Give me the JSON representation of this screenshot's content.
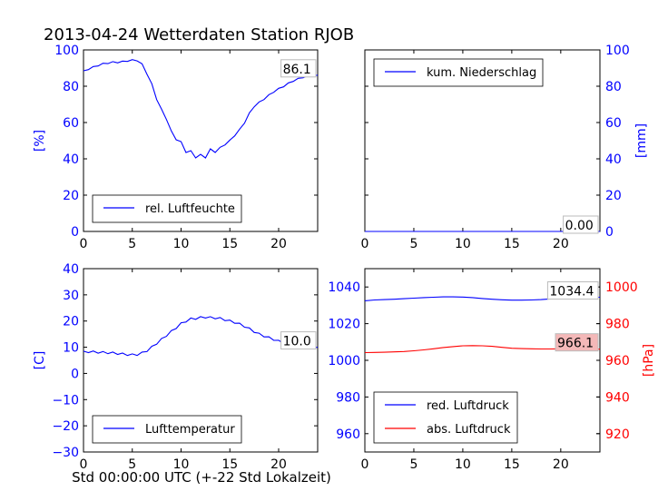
{
  "figure": {
    "title": "2013-04-24 Wetterdaten Station RJOB",
    "xlabel": "Std 00:00:00 UTC (+-22 Std Lokalzeit)"
  },
  "colors": {
    "blue": "#0000ff",
    "red": "#ff0000",
    "black": "#000000",
    "label_box": "#ffffff",
    "label_box_red": "#f4b8b8"
  },
  "chart_data": [
    {
      "id": "humidity",
      "type": "line",
      "xlim": [
        0,
        24
      ],
      "ylim": [
        0,
        100
      ],
      "xticks": [
        "0",
        "5",
        "10",
        "15",
        "20"
      ],
      "yticks": [
        "0",
        "20",
        "40",
        "60",
        "80",
        "100"
      ],
      "ylabel": "[%]",
      "legend": "lower-left",
      "last_value_label": "86.1",
      "series": [
        {
          "name": "rel. Luftfeuchte",
          "color": "#0000ff",
          "x": [
            0,
            0.5,
            1,
            1.5,
            2,
            2.5,
            3,
            3.5,
            4,
            4.5,
            5,
            5.5,
            6,
            6.5,
            7,
            7.5,
            8,
            8.5,
            9,
            9.5,
            10,
            10.5,
            11,
            11.5,
            12,
            12.5,
            13,
            13.5,
            14,
            14.5,
            15,
            15.5,
            16,
            16.5,
            17,
            17.5,
            18,
            18.5,
            19,
            19.5,
            20,
            20.5,
            21,
            21.5,
            22,
            22.5,
            23,
            23.5,
            24
          ],
          "y": [
            88.5,
            89.5,
            90.5,
            91.5,
            92.3,
            92.8,
            93.2,
            93.2,
            93.5,
            94,
            94.3,
            94.3,
            92,
            87,
            81,
            73,
            67,
            62,
            55,
            52,
            48,
            45,
            43,
            42,
            41,
            42,
            44,
            45,
            46,
            48,
            50,
            53,
            56,
            60,
            65,
            69,
            71,
            73,
            75,
            77,
            78.5,
            80,
            81.5,
            83,
            84,
            85,
            85.5,
            86,
            86.1
          ]
        }
      ]
    },
    {
      "id": "precipitation",
      "type": "line",
      "xlim": [
        0,
        24
      ],
      "ylim": [
        0,
        100
      ],
      "xticks": [
        "0",
        "5",
        "10",
        "15",
        "20"
      ],
      "yticks": [
        "0",
        "20",
        "40",
        "60",
        "80",
        "100"
      ],
      "ylabel": "[mm]",
      "legend": "top-left",
      "last_value_label": "0.00",
      "series": [
        {
          "name": "kum. Niederschlag",
          "color": "#0000ff",
          "x": [
            0,
            24
          ],
          "y": [
            0,
            0
          ]
        }
      ]
    },
    {
      "id": "temperature",
      "type": "line",
      "xlim": [
        0,
        24
      ],
      "ylim": [
        -30,
        40
      ],
      "xticks": [
        "0",
        "5",
        "10",
        "15",
        "20"
      ],
      "yticks": [
        "−30",
        "−20",
        "−10",
        "0",
        "10",
        "20",
        "30",
        "40"
      ],
      "ylabel": "[C]",
      "legend": "lower-left",
      "last_value_label": "10.0",
      "series": [
        {
          "name": "Lufttemperatur",
          "color": "#0000ff",
          "x": [
            0,
            0.5,
            1,
            1.5,
            2,
            2.5,
            3,
            3.5,
            4,
            4.5,
            5,
            5.5,
            6,
            6.5,
            7,
            7.5,
            8,
            8.5,
            9,
            9.5,
            10,
            10.5,
            11,
            11.5,
            12,
            12.5,
            13,
            13.5,
            14,
            14.5,
            15,
            15.5,
            16,
            16.5,
            17,
            17.5,
            18,
            18.5,
            19,
            19.5,
            20,
            20.5,
            21,
            21.5,
            22,
            22.5,
            23,
            23.5,
            24
          ],
          "y": [
            8.5,
            8.3,
            8.2,
            8.1,
            8.0,
            7.9,
            7.8,
            7.6,
            7.4,
            7.2,
            7.1,
            7.2,
            7.8,
            8.7,
            10,
            11.5,
            13,
            14.5,
            16,
            17.5,
            19,
            20,
            20.8,
            21,
            21.3,
            21.5,
            21.3,
            21.2,
            21,
            20.5,
            20,
            19.5,
            18.8,
            18,
            17,
            16,
            15,
            14.3,
            13.6,
            13,
            12.3,
            11.8,
            11.4,
            11,
            10.8,
            10.6,
            10.3,
            10.1,
            10.0
          ]
        }
      ]
    },
    {
      "id": "pressure",
      "type": "line",
      "xlim": [
        0,
        24
      ],
      "ylim": [
        950,
        1050
      ],
      "ylim_right": [
        910,
        1010
      ],
      "xticks": [
        "0",
        "5",
        "10",
        "15",
        "20"
      ],
      "yticks": [
        "960",
        "980",
        "1000",
        "1020",
        "1040"
      ],
      "yticks_right": [
        "920",
        "940",
        "960",
        "980",
        "1000"
      ],
      "ylabel_right": "[hPa]",
      "legend": "lower-left",
      "last_value_labels": [
        "1034.4",
        "966.1"
      ],
      "series": [
        {
          "name": "red. Luftdruck",
          "color": "#0000ff",
          "axis": "left",
          "x": [
            0,
            1,
            2,
            3,
            4,
            5,
            6,
            7,
            8,
            9,
            10,
            11,
            12,
            13,
            14,
            15,
            16,
            17,
            18,
            19,
            20,
            21,
            22,
            23,
            24
          ],
          "y": [
            1032.5,
            1032.9,
            1033.1,
            1033.3,
            1033.6,
            1033.9,
            1034.2,
            1034.4,
            1034.6,
            1034.6,
            1034.5,
            1034.2,
            1033.7,
            1033.3,
            1033,
            1032.8,
            1032.8,
            1032.9,
            1033.1,
            1033.5,
            1033.9,
            1034.1,
            1034.3,
            1034.4,
            1034.4
          ]
        },
        {
          "name": "abs. Luftdruck",
          "color": "#ff0000",
          "axis": "right",
          "x": [
            0,
            1,
            2,
            3,
            4,
            5,
            6,
            7,
            8,
            9,
            10,
            11,
            12,
            13,
            14,
            15,
            16,
            17,
            18,
            19,
            20,
            21,
            22,
            23,
            24
          ],
          "y": [
            964.2,
            964.3,
            964.4,
            964.6,
            964.8,
            965.2,
            965.7,
            966.3,
            967,
            967.5,
            967.9,
            968,
            967.9,
            967.6,
            967.1,
            966.6,
            966.4,
            966.3,
            966.2,
            966.2,
            966.3,
            966.4,
            966.1,
            966.1,
            966.1
          ]
        }
      ]
    }
  ]
}
